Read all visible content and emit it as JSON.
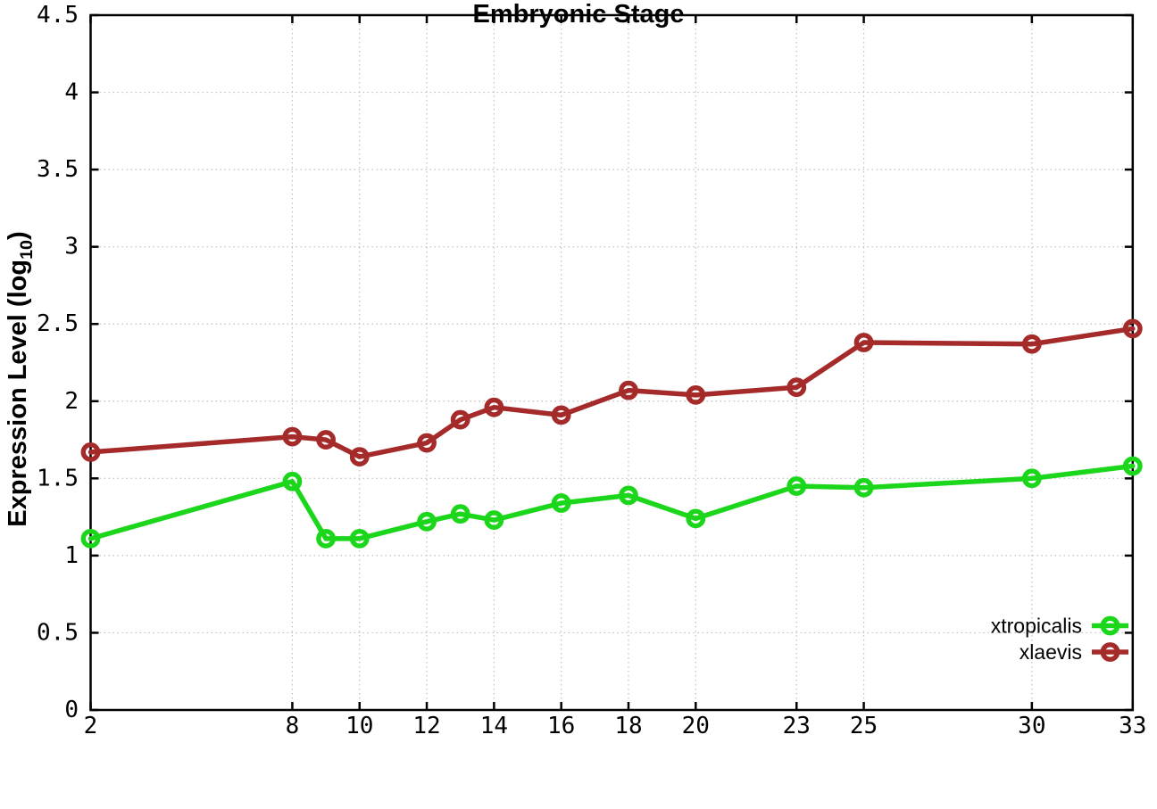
{
  "chart_data": {
    "type": "line",
    "x": [
      2,
      8,
      9,
      10,
      12,
      13,
      14,
      16,
      18,
      20,
      23,
      25,
      30,
      33
    ],
    "series": [
      {
        "name": "xtropicalis",
        "color": "#1cd61c",
        "values": [
          1.11,
          1.48,
          1.11,
          1.11,
          1.22,
          1.27,
          1.23,
          1.34,
          1.39,
          1.24,
          1.45,
          1.44,
          1.5,
          1.58
        ]
      },
      {
        "name": "xlaevis",
        "color": "#a52a2a",
        "values": [
          1.67,
          1.77,
          1.75,
          1.64,
          1.73,
          1.88,
          1.96,
          1.91,
          2.07,
          2.04,
          2.09,
          2.38,
          2.37,
          2.47
        ]
      }
    ],
    "title": "",
    "xlabel": "Embryonic Stage",
    "ylabel": "Expression Level (log10)",
    "ylabel_parts": {
      "prefix": "Expression Level (log",
      "sub": "10",
      "suffix": ")"
    },
    "xlim": [
      2,
      33
    ],
    "ylim": [
      0,
      4.5
    ],
    "xticks": [
      2,
      8,
      10,
      12,
      14,
      16,
      18,
      20,
      23,
      25,
      30,
      33
    ],
    "yticks": [
      0,
      0.5,
      1,
      1.5,
      2,
      2.5,
      3,
      3.5,
      4,
      4.5
    ],
    "grid": "dotted",
    "marker": "open-circle",
    "legend_position": "inside-bottom-right",
    "colors": {
      "axis": "#000000",
      "grid": "#bfbfbf",
      "background": "#ffffff"
    }
  }
}
